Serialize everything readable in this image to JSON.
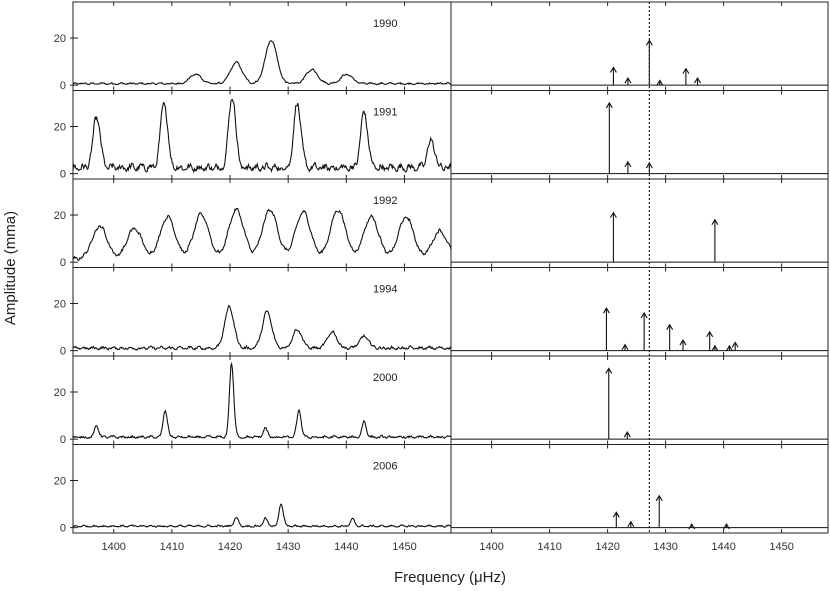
{
  "chart_data": {
    "type": "line",
    "xlabel": "Frequency (μHz)",
    "ylabel": "Amplitude (mma)",
    "xlim": [
      1393,
      1458
    ],
    "x_ticks": [
      1400,
      1410,
      1420,
      1430,
      1440,
      1450
    ],
    "y_ticks": [
      0,
      20
    ],
    "ylim": [
      -1,
      34
    ],
    "reference_line": {
      "x": 1427.2,
      "style": "dotted"
    },
    "layout": "6 rows x 2 columns; left = amplitude spectrum, right = identified frequencies (arrows)",
    "panels": [
      {
        "year": "1990",
        "peaks": [
          [
            1421,
            9
          ],
          [
            1427,
            18.5
          ],
          [
            1434,
            6
          ],
          [
            1414,
            4
          ],
          [
            1440,
            4
          ]
        ],
        "peak_width": 1.0,
        "noise": 1.5,
        "arrows": [
          [
            1421,
            7.5
          ],
          [
            1423.5,
            3
          ],
          [
            1427.2,
            19
          ],
          [
            1429,
            2
          ],
          [
            1433.5,
            7
          ],
          [
            1435.5,
            3
          ]
        ]
      },
      {
        "year": "1991",
        "peaks": [
          [
            1397,
            22
          ],
          [
            1408.6,
            28
          ],
          [
            1420.3,
            31
          ],
          [
            1431.5,
            28
          ],
          [
            1443,
            24
          ],
          [
            1454.5,
            12
          ]
        ],
        "peak_width": 0.6,
        "noise": 6,
        "arrows": [
          [
            1420.3,
            30
          ],
          [
            1423.5,
            5
          ],
          [
            1427.2,
            4.5
          ]
        ]
      },
      {
        "year": "1992",
        "peaks": [
          [
            1397.5,
            14
          ],
          [
            1403.5,
            13
          ],
          [
            1409.2,
            18
          ],
          [
            1415,
            19
          ],
          [
            1421,
            21
          ],
          [
            1426.8,
            21
          ],
          [
            1432.5,
            20
          ],
          [
            1438.5,
            21
          ],
          [
            1444.2,
            18
          ],
          [
            1450.2,
            18
          ],
          [
            1456,
            12
          ]
        ],
        "peak_width": 1.3,
        "noise": 3,
        "arrows": [
          [
            1421,
            21
          ],
          [
            1438.5,
            18
          ]
        ]
      },
      {
        "year": "1994",
        "peaks": [
          [
            1419.8,
            17.5
          ],
          [
            1426.3,
            15.5
          ],
          [
            1431.5,
            8
          ],
          [
            1437.5,
            7
          ],
          [
            1443,
            5
          ]
        ],
        "peak_width": 0.8,
        "noise": 2.5,
        "arrows": [
          [
            1419.8,
            18
          ],
          [
            1423,
            2.5
          ],
          [
            1426.3,
            16
          ],
          [
            1430.7,
            11
          ],
          [
            1433,
            4.5
          ],
          [
            1437.6,
            8
          ],
          [
            1438.5,
            2
          ],
          [
            1441,
            2
          ],
          [
            1442,
            3.5
          ]
        ]
      },
      {
        "year": "2000",
        "peaks": [
          [
            1420.2,
            33
          ],
          [
            1408.8,
            12
          ],
          [
            1431.8,
            12
          ],
          [
            1397,
            5
          ],
          [
            1443,
            7
          ],
          [
            1426,
            4
          ]
        ],
        "peak_width": 0.35,
        "noise": 2,
        "arrows": [
          [
            1420.2,
            30
          ],
          [
            1423.4,
            3
          ]
        ]
      },
      {
        "year": "2006",
        "peaks": [
          [
            1428.7,
            10
          ],
          [
            1421,
            4
          ],
          [
            1426,
            3.5
          ],
          [
            1441,
            3
          ]
        ],
        "peak_width": 0.35,
        "noise": 1.5,
        "arrows": [
          [
            1421.5,
            6.5
          ],
          [
            1424,
            2.5
          ],
          [
            1428.9,
            13.5
          ],
          [
            1434.5,
            1.5
          ],
          [
            1440.5,
            1.5
          ]
        ]
      }
    ]
  }
}
